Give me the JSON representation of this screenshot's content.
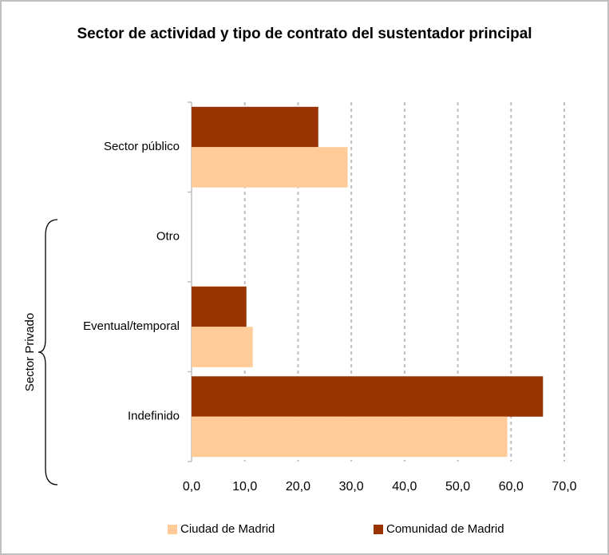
{
  "chart_data": {
    "type": "barh",
    "title": "Sector de actividad y tipo de contrato del sustentador principal",
    "categories": [
      "Sector público",
      "Otro",
      "Eventual/temporal",
      "Indefinido"
    ],
    "series": [
      {
        "name": "Ciudad de Madrid",
        "color": "#ffcc99",
        "values": [
          29.3,
          0,
          11.5,
          59.3
        ]
      },
      {
        "name": "Comunidad de Madrid",
        "color": "#993300",
        "values": [
          23.8,
          0,
          10.3,
          66.0
        ]
      }
    ],
    "xlim": [
      0,
      70
    ],
    "xticks": [
      {
        "value": 0,
        "label": "0,0"
      },
      {
        "value": 10,
        "label": "10,0"
      },
      {
        "value": 20,
        "label": "20,0"
      },
      {
        "value": 30,
        "label": "30,0"
      },
      {
        "value": 40,
        "label": "40,0"
      },
      {
        "value": 50,
        "label": "50,0"
      },
      {
        "value": 60,
        "label": "60,0"
      },
      {
        "value": 70,
        "label": "70,0"
      }
    ],
    "grid": true,
    "legend": "bottom",
    "annotation": "Sector Privado"
  }
}
